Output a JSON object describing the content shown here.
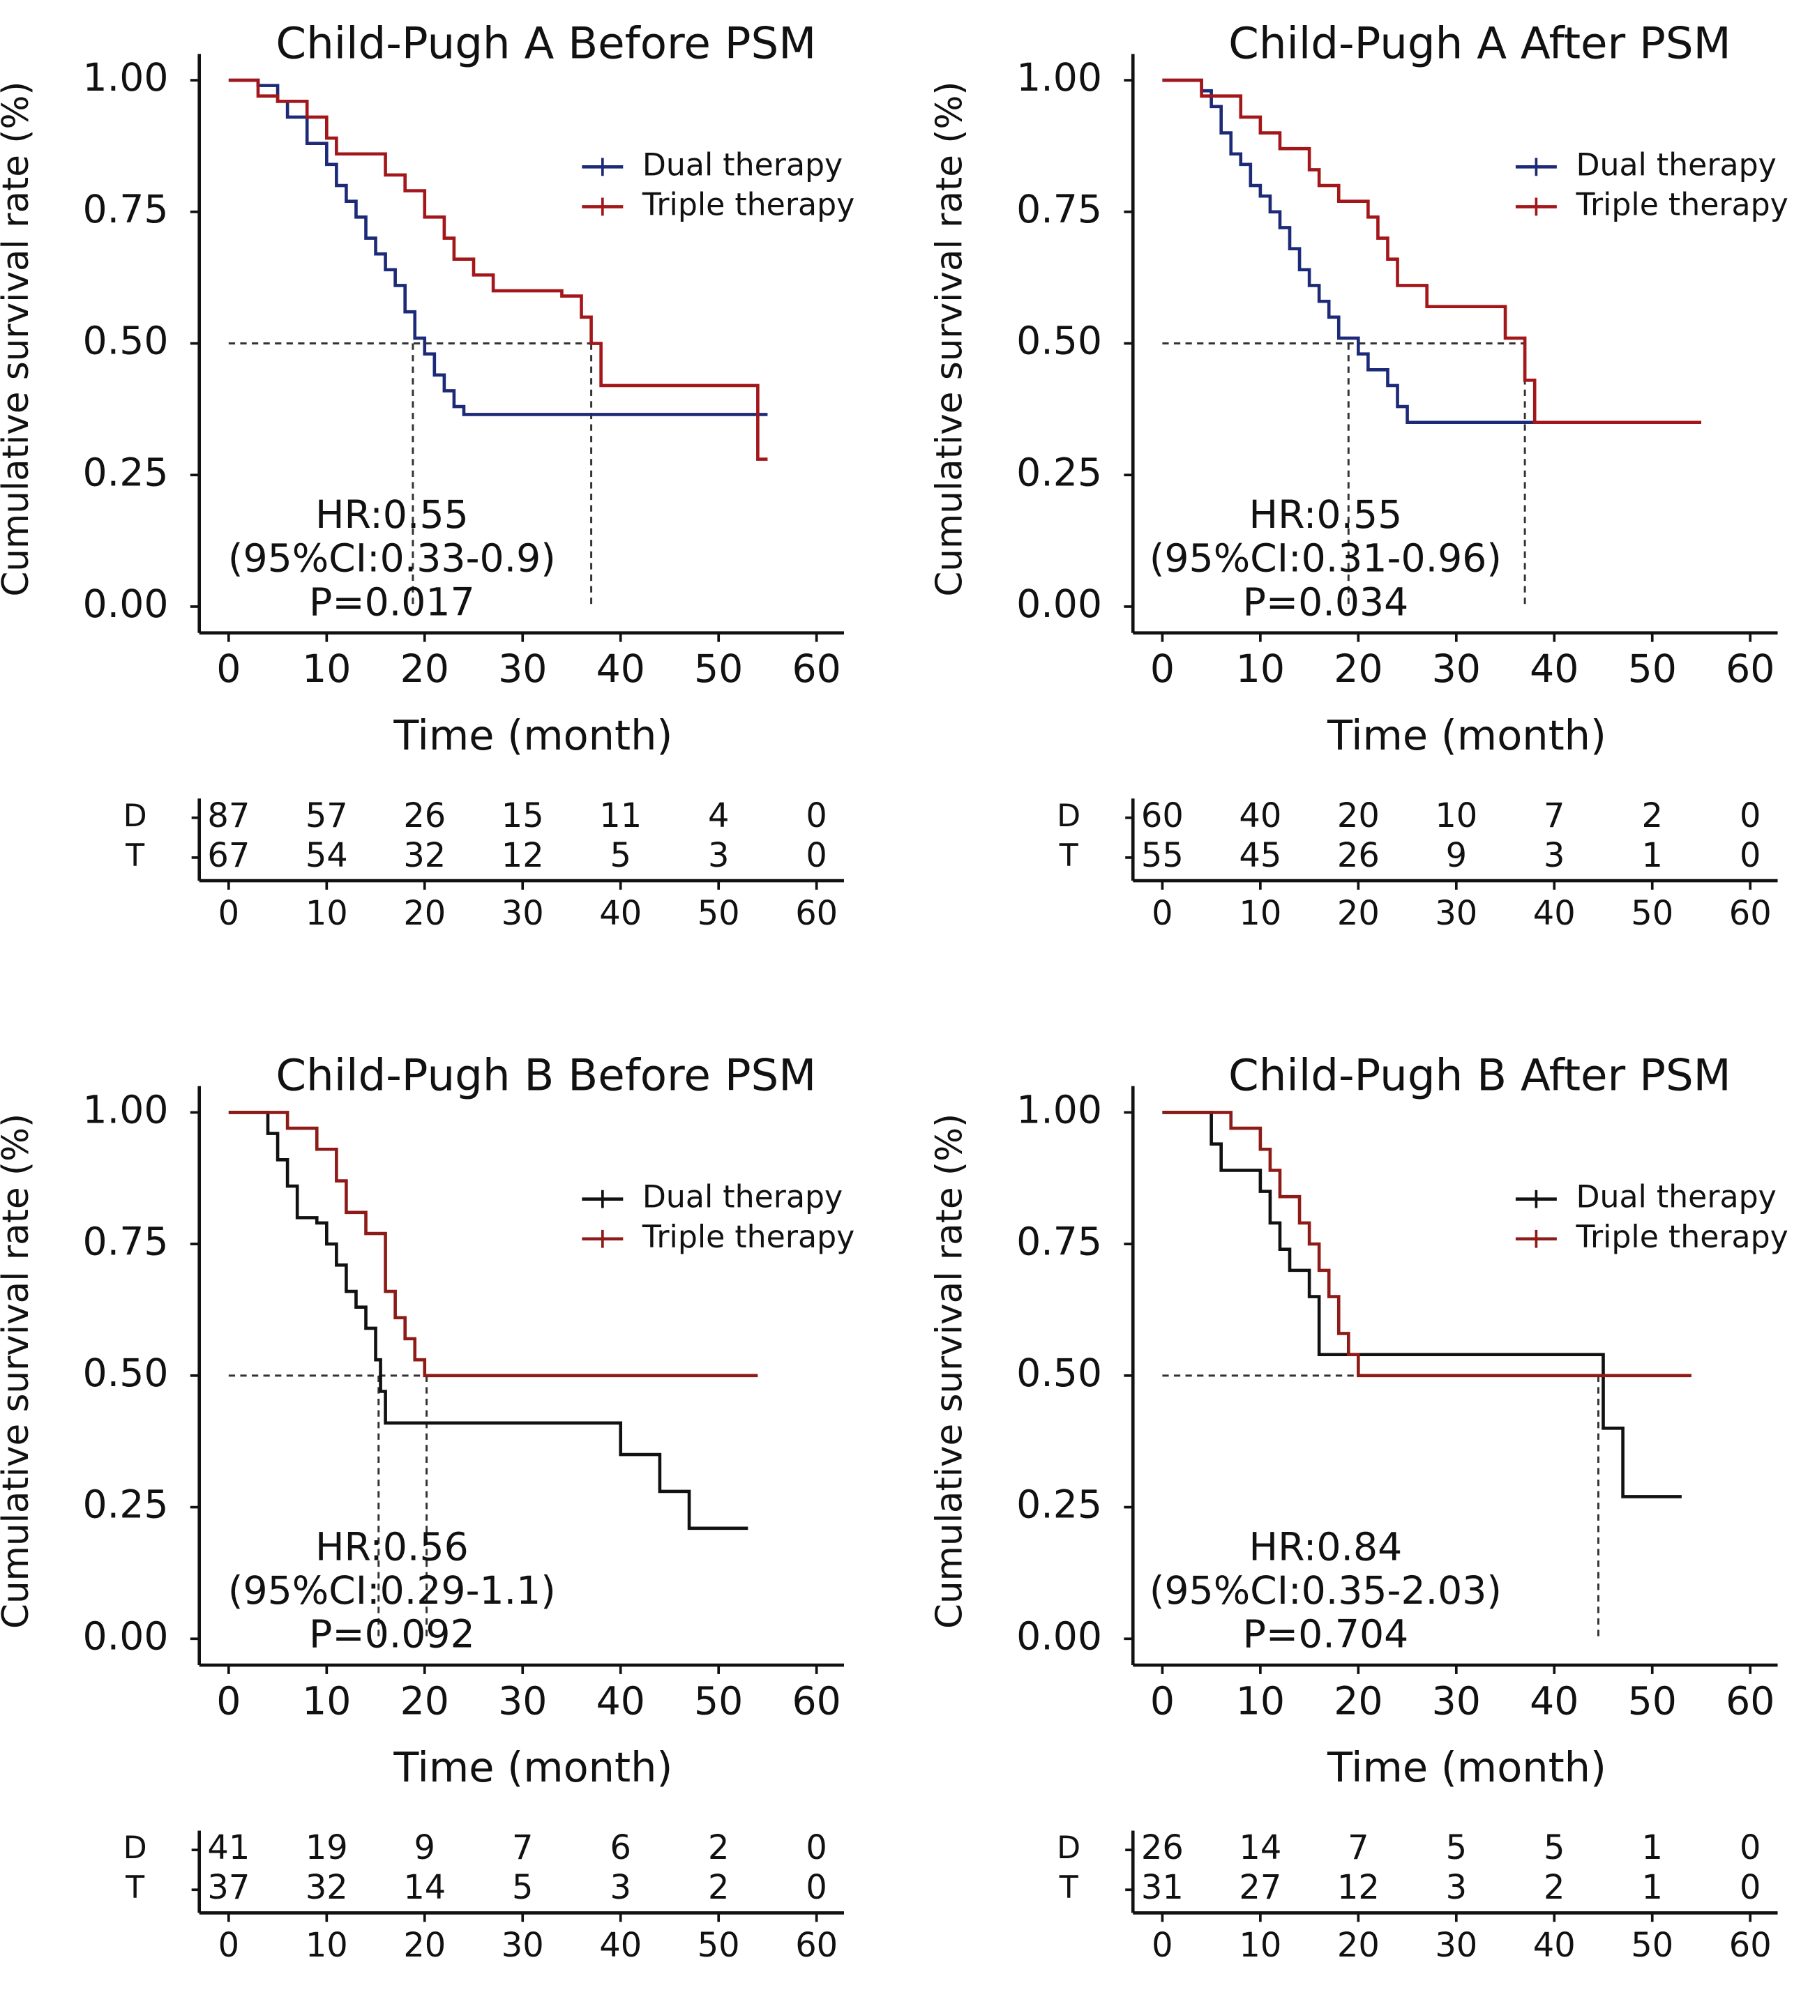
{
  "chart_data": [
    {
      "type": "step",
      "title": "Child-Pugh A Before PSM",
      "xlabel": "Time (month)",
      "ylabel": "Cumulative survival rate (%)",
      "xlim": [
        -3,
        62.8
      ],
      "ylim": [
        -0.05,
        1.05
      ],
      "xticks": [
        0,
        10,
        20,
        30,
        40,
        50,
        60
      ],
      "yticks": [
        {
          "value": 0,
          "label": "0.00"
        },
        {
          "value": 0.25,
          "label": "0.25"
        },
        {
          "value": 0.5,
          "label": "0.50"
        },
        {
          "value": 0.75,
          "label": "0.75"
        },
        {
          "value": 1,
          "label": "1.00"
        }
      ],
      "legend": "upper right",
      "series": [
        {
          "name": "Dual therapy",
          "color": "#1c2a78",
          "x": [
            0,
            3,
            5,
            6,
            8,
            10,
            11,
            12,
            13,
            14,
            15,
            16,
            17,
            18,
            19,
            20,
            21,
            22,
            23,
            24,
            55
          ],
          "y": [
            1,
            0.99,
            0.96,
            0.93,
            0.88,
            0.84,
            0.8,
            0.77,
            0.74,
            0.7,
            0.67,
            0.64,
            0.61,
            0.56,
            0.51,
            0.48,
            0.44,
            0.41,
            0.38,
            0.365,
            0.365
          ]
        },
        {
          "name": "Triple therapy",
          "color": "#a3161a",
          "x": [
            0,
            3,
            5,
            8,
            10,
            11,
            16,
            18,
            20,
            22,
            23,
            25,
            27,
            34,
            36,
            37,
            38,
            54,
            55
          ],
          "y": [
            1,
            0.97,
            0.96,
            0.93,
            0.89,
            0.86,
            0.82,
            0.79,
            0.74,
            0.7,
            0.66,
            0.63,
            0.6,
            0.59,
            0.55,
            0.5,
            0.42,
            0.28,
            0.28
          ]
        }
      ],
      "median_y": 0.5,
      "median_x": [
        18.8,
        37
      ],
      "annotations": [
        "HR:0.55",
        "(95%CI:0.33-0.9)",
        "P=0.017"
      ],
      "risk_table": {
        "row_labels": [
          "D",
          "T"
        ],
        "xticks": [
          0,
          10,
          20,
          30,
          40,
          50,
          60
        ],
        "counts": [
          [
            87,
            57,
            26,
            15,
            11,
            4,
            0
          ],
          [
            67,
            54,
            32,
            12,
            5,
            3,
            0
          ]
        ]
      }
    },
    {
      "type": "step",
      "title": "Child-Pugh A After PSM",
      "xlabel": "Time (month)",
      "ylabel": "Cumulative survival rate (%)",
      "xlim": [
        -3,
        62.8
      ],
      "ylim": [
        -0.05,
        1.05
      ],
      "xticks": [
        0,
        10,
        20,
        30,
        40,
        50,
        60
      ],
      "yticks": [
        {
          "value": 0,
          "label": "0.00"
        },
        {
          "value": 0.25,
          "label": "0.25"
        },
        {
          "value": 0.5,
          "label": "0.50"
        },
        {
          "value": 0.75,
          "label": "0.75"
        },
        {
          "value": 1,
          "label": "1.00"
        }
      ],
      "legend": "upper right",
      "series": [
        {
          "name": "Dual therapy",
          "color": "#1c2a78",
          "x": [
            0,
            4,
            5,
            6,
            7,
            8,
            9,
            10,
            11,
            12,
            13,
            14,
            15,
            16,
            17,
            18,
            20,
            21,
            23,
            24,
            25,
            55
          ],
          "y": [
            1,
            0.98,
            0.95,
            0.9,
            0.86,
            0.84,
            0.8,
            0.78,
            0.75,
            0.72,
            0.68,
            0.64,
            0.61,
            0.58,
            0.55,
            0.51,
            0.48,
            0.45,
            0.42,
            0.38,
            0.35,
            0.35
          ]
        },
        {
          "name": "Triple therapy",
          "color": "#a3161a",
          "x": [
            0,
            4,
            8,
            10,
            12,
            15,
            16,
            18,
            21,
            22,
            23,
            24,
            27,
            35,
            37,
            38,
            55
          ],
          "y": [
            1,
            0.97,
            0.93,
            0.9,
            0.87,
            0.83,
            0.8,
            0.77,
            0.74,
            0.7,
            0.66,
            0.61,
            0.57,
            0.51,
            0.43,
            0.35,
            0.35
          ]
        }
      ],
      "median_y": 0.5,
      "median_x": [
        19,
        37
      ],
      "annotations": [
        "HR:0.55",
        "(95%CI:0.31-0.96)",
        "P=0.034"
      ],
      "risk_table": {
        "row_labels": [
          "D",
          "T"
        ],
        "xticks": [
          0,
          10,
          20,
          30,
          40,
          50,
          60
        ],
        "counts": [
          [
            60,
            40,
            20,
            10,
            7,
            2,
            0
          ],
          [
            55,
            45,
            26,
            9,
            3,
            1,
            0
          ]
        ]
      }
    },
    {
      "type": "step",
      "title": "Child-Pugh B Before PSM",
      "xlabel": "Time (month)",
      "ylabel": "Cumulative survival rate (%)",
      "xlim": [
        -3,
        62.8
      ],
      "ylim": [
        -0.05,
        1.05
      ],
      "xticks": [
        0,
        10,
        20,
        30,
        40,
        50,
        60
      ],
      "yticks": [
        {
          "value": 0,
          "label": "0.00"
        },
        {
          "value": 0.25,
          "label": "0.25"
        },
        {
          "value": 0.5,
          "label": "0.50"
        },
        {
          "value": 0.75,
          "label": "0.75"
        },
        {
          "value": 1,
          "label": "1.00"
        }
      ],
      "legend": "upper right",
      "series": [
        {
          "name": "Dual therapy",
          "color": "#111111",
          "x": [
            0,
            4,
            5,
            6,
            7,
            9,
            10,
            11,
            12,
            13,
            14,
            15,
            15.5,
            16,
            40,
            44,
            47,
            53
          ],
          "y": [
            1,
            0.96,
            0.91,
            0.86,
            0.8,
            0.79,
            0.75,
            0.71,
            0.66,
            0.63,
            0.59,
            0.53,
            0.47,
            0.41,
            0.35,
            0.28,
            0.21,
            0.21
          ]
        },
        {
          "name": "Triple therapy",
          "color": "#8e1b17",
          "x": [
            0,
            6,
            9,
            11,
            12,
            14,
            16,
            17,
            18,
            19,
            20,
            54
          ],
          "y": [
            1,
            0.97,
            0.93,
            0.87,
            0.81,
            0.77,
            0.66,
            0.61,
            0.57,
            0.53,
            0.5,
            0.5
          ]
        }
      ],
      "median_y": 0.5,
      "median_x": [
        15.3,
        20.2
      ],
      "annotations": [
        "HR:0.56",
        "(95%CI:0.29-1.1)",
        "P=0.092"
      ],
      "risk_table": {
        "row_labels": [
          "D",
          "T"
        ],
        "xticks": [
          0,
          10,
          20,
          30,
          40,
          50,
          60
        ],
        "counts": [
          [
            41,
            19,
            9,
            7,
            6,
            2,
            0
          ],
          [
            37,
            32,
            14,
            5,
            3,
            2,
            0
          ]
        ]
      }
    },
    {
      "type": "step",
      "title": "Child-Pugh B After PSM",
      "xlabel": "Time (month)",
      "ylabel": "Cumulative survival rate (%)",
      "xlim": [
        -3,
        62.8
      ],
      "ylim": [
        -0.05,
        1.05
      ],
      "xticks": [
        0,
        10,
        20,
        30,
        40,
        50,
        60
      ],
      "yticks": [
        {
          "value": 0,
          "label": "0.00"
        },
        {
          "value": 0.25,
          "label": "0.25"
        },
        {
          "value": 0.5,
          "label": "0.50"
        },
        {
          "value": 0.75,
          "label": "0.75"
        },
        {
          "value": 1,
          "label": "1.00"
        }
      ],
      "legend": "upper right",
      "series": [
        {
          "name": "Dual therapy",
          "color": "#111111",
          "x": [
            0,
            5,
            6,
            10,
            11,
            12,
            13,
            15,
            16,
            45,
            47,
            53
          ],
          "y": [
            1,
            0.94,
            0.89,
            0.85,
            0.79,
            0.74,
            0.7,
            0.65,
            0.54,
            0.4,
            0.27,
            0.27
          ]
        },
        {
          "name": "Triple therapy",
          "color": "#8e1b17",
          "x": [
            0,
            7,
            10,
            11,
            12,
            14,
            15,
            16,
            17,
            18,
            19,
            20,
            54
          ],
          "y": [
            1,
            0.97,
            0.93,
            0.89,
            0.84,
            0.79,
            0.75,
            0.7,
            0.65,
            0.58,
            0.54,
            0.5,
            0.5
          ]
        }
      ],
      "median_y": 0.5,
      "median_x": [
        44.5
      ],
      "annotations": [
        "HR:0.84",
        "(95%CI:0.35-2.03)",
        "P=0.704"
      ],
      "risk_table": {
        "row_labels": [
          "D",
          "T"
        ],
        "xticks": [
          0,
          10,
          20,
          30,
          40,
          50,
          60
        ],
        "counts": [
          [
            26,
            14,
            7,
            5,
            5,
            1,
            0
          ],
          [
            31,
            27,
            12,
            3,
            2,
            1,
            0
          ]
        ]
      }
    }
  ]
}
